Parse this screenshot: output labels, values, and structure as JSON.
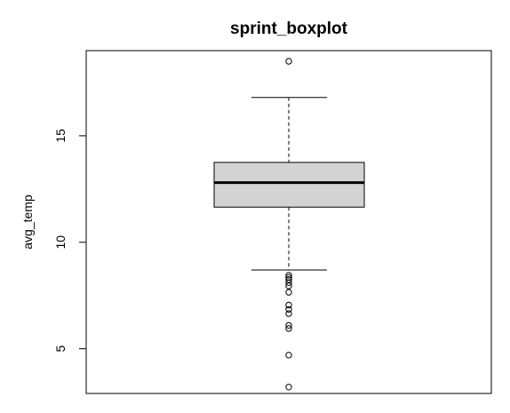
{
  "chart_data": {
    "type": "boxplot",
    "title": "sprint_boxplot",
    "xlabel": "",
    "ylabel": "avg_temp",
    "ylim": [
      2.9,
      19.0
    ],
    "yticks": [
      5,
      10,
      15
    ],
    "ytick_labels": [
      "5",
      "10",
      "15"
    ],
    "grid": false,
    "box": {
      "fill": "#d3d3d3",
      "lower_whisker": 8.7,
      "q1": 11.65,
      "median": 12.8,
      "q3": 13.75,
      "upper_whisker": 16.8
    },
    "outliers": [
      18.5,
      8.45,
      8.35,
      8.25,
      8.1,
      7.95,
      7.65,
      7.05,
      6.85,
      6.65,
      6.1,
      5.95,
      4.7,
      3.2
    ]
  }
}
